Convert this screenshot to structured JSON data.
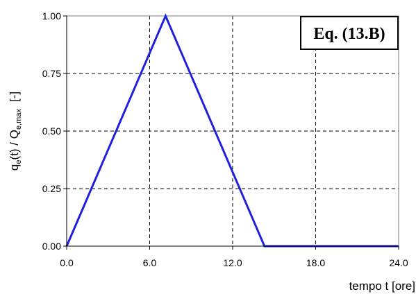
{
  "chart_data": {
    "type": "line",
    "xlabel": "tempo t [ore]",
    "ylabel": {
      "q": "q",
      "q_sub": "e",
      "mid": "(t) / Q",
      "Q_sub": "e,max",
      "unit": "[-]"
    },
    "annotation": "Eq. (13.B)",
    "xlim": [
      0,
      24
    ],
    "ylim": [
      0,
      1
    ],
    "x_ticks": [
      0,
      6,
      12,
      18,
      24
    ],
    "x_tick_labels": [
      "0.0",
      "6.0",
      "12.0",
      "18.0",
      "24.0"
    ],
    "y_ticks": [
      0,
      0.25,
      0.5,
      0.75,
      1
    ],
    "y_tick_labels": [
      "0.00",
      "0.25",
      "0.50",
      "0.75",
      "1.00"
    ],
    "grid": true,
    "grid_style": "dashed",
    "series": [
      {
        "color": "#1f1fe0",
        "points": [
          [
            0,
            0
          ],
          [
            7.15,
            1.0
          ],
          [
            14.3,
            0
          ],
          [
            24,
            0
          ]
        ]
      }
    ]
  }
}
